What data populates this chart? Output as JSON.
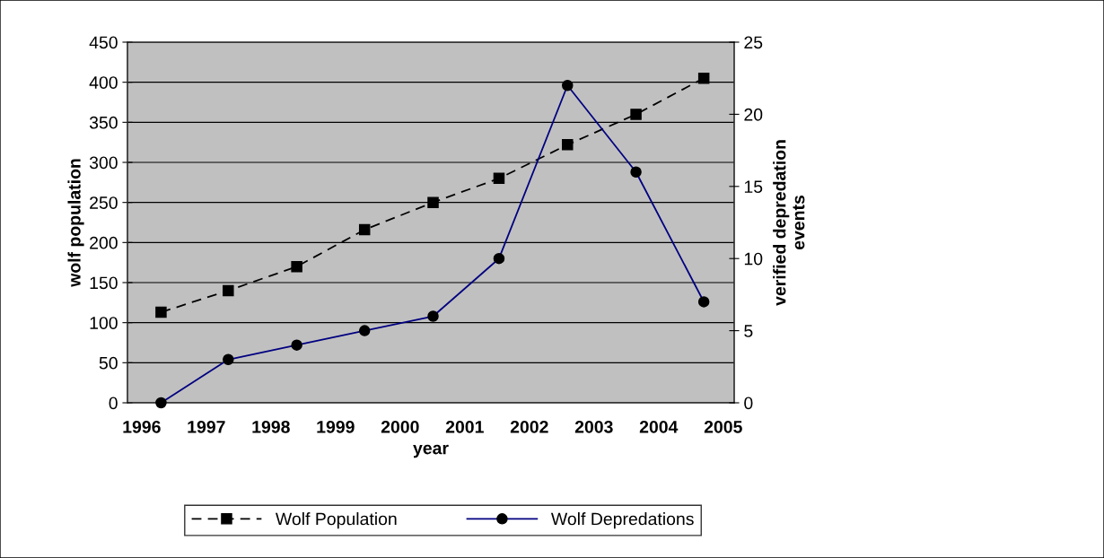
{
  "chart_data": {
    "type": "line",
    "x": [
      1996.3,
      1997.34,
      1998.4,
      1999.45,
      2000.51,
      2001.53,
      2002.59,
      2003.65,
      2004.7
    ],
    "xlim": [
      1995.78,
      2005.17
    ],
    "xticks": [
      1996,
      1997,
      1998,
      1999,
      2000,
      2001,
      2002,
      2003,
      2004,
      2005
    ],
    "xlabel": "year",
    "ylabel": "wolf population",
    "y2label": "verified depredation\nevents",
    "ylim": [
      0,
      450
    ],
    "yticks": [
      0,
      50,
      100,
      150,
      200,
      250,
      300,
      350,
      400,
      450
    ],
    "y2lim": [
      0,
      25
    ],
    "y2ticks": [
      0,
      5,
      10,
      15,
      20,
      25
    ],
    "grid": "y",
    "legend": "bottom",
    "series": [
      {
        "name": "Wolf Population",
        "color": "#000000",
        "marker": "square",
        "line_style": "dashed",
        "values": [
          113,
          140,
          170,
          216,
          250,
          280,
          322,
          360,
          405
        ]
      },
      {
        "name": "Wolf Depredations",
        "color": "#000080",
        "marker": "circle",
        "line_style": "solid",
        "axis": "y2",
        "values": [
          0,
          3,
          4,
          5,
          6,
          10,
          22,
          16,
          7
        ]
      }
    ]
  }
}
